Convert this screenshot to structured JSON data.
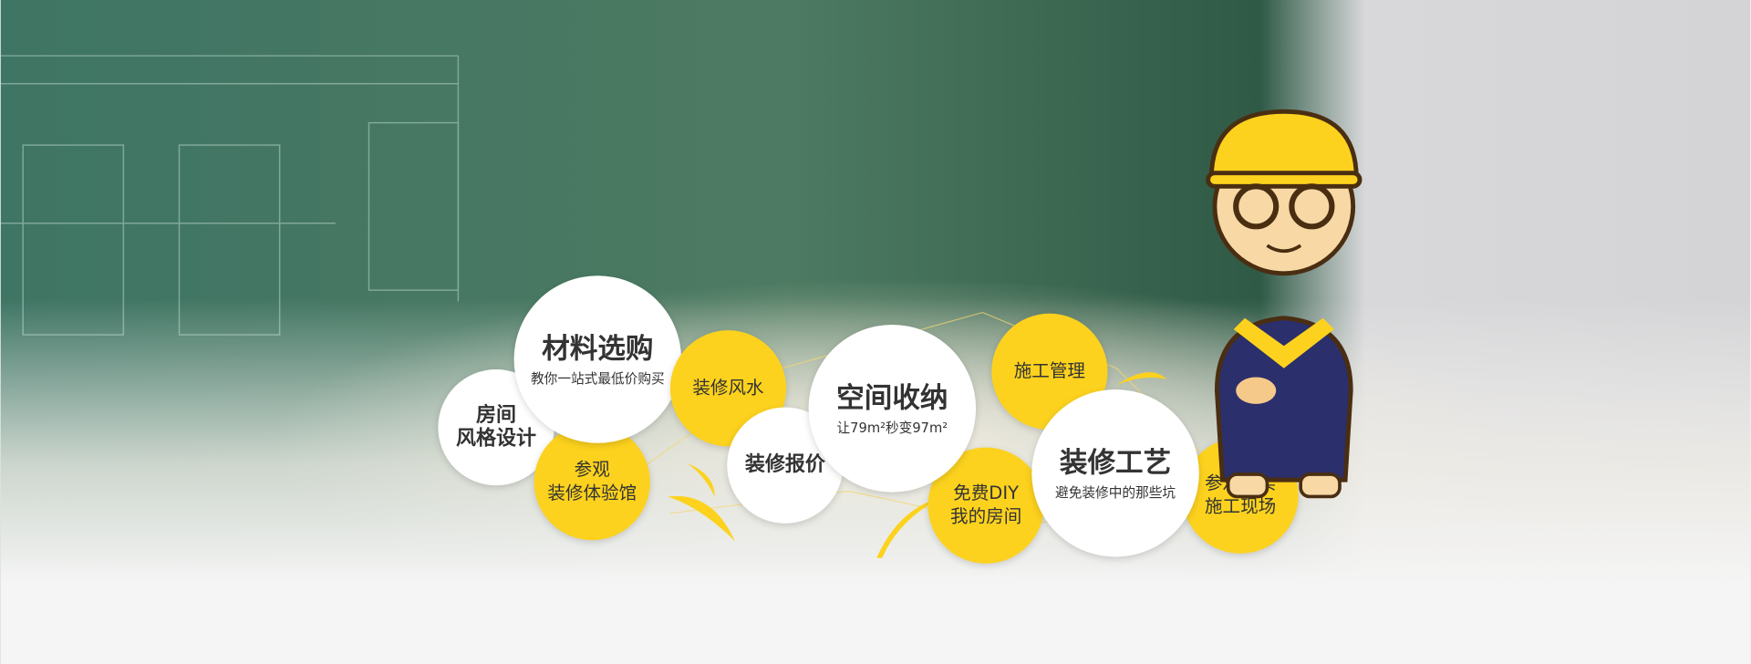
{
  "bubbles": [
    {
      "lines": [
        "房间",
        "风格设计"
      ]
    },
    {
      "lines": [
        "材料选购"
      ],
      "subtitle": "教你一站式最低价购买"
    },
    {
      "lines": [
        "参观",
        "装修体验馆"
      ]
    },
    {
      "lines": [
        "装修风水"
      ]
    },
    {
      "lines": [
        "装修报价"
      ]
    },
    {
      "lines": [
        "空间收纳"
      ],
      "subtitle": "让79m²秒变97m²"
    },
    {
      "lines": [
        "施工管理"
      ]
    },
    {
      "lines": [
        "免费DIY",
        "我的房间"
      ]
    },
    {
      "lines": [
        "装修工艺"
      ],
      "subtitle": "避免装修中的那些坑"
    },
    {
      "lines": [
        "参观真实",
        "施工现场"
      ]
    }
  ]
}
